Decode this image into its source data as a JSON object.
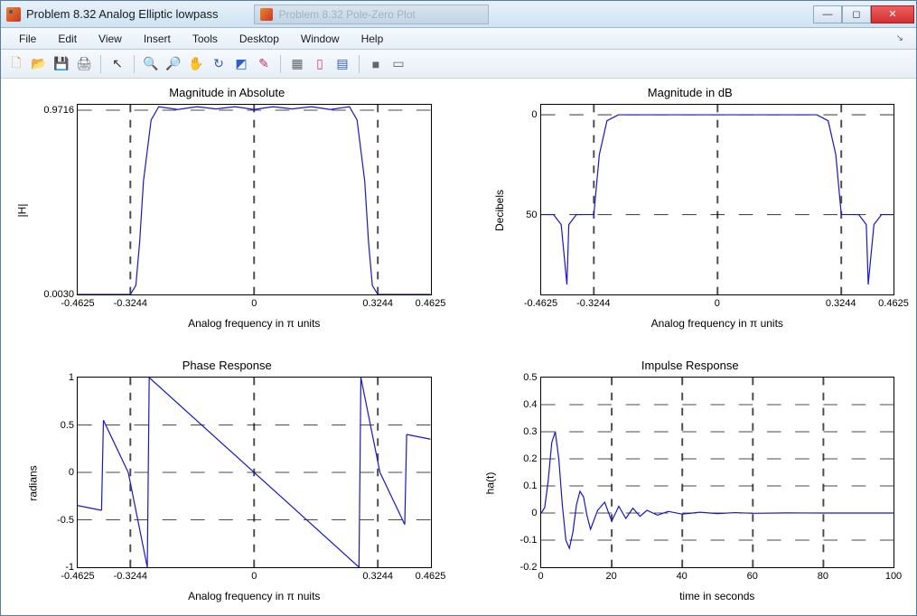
{
  "window": {
    "title": "Problem 8.32 Analog Elliptic lowpass",
    "inactive_tab": "Problem 8.32 Pole-Zero Plot"
  },
  "menu": {
    "items": [
      "File",
      "Edit",
      "View",
      "Insert",
      "Tools",
      "Desktop",
      "Window",
      "Help"
    ]
  },
  "toolbar": {
    "icons": [
      {
        "name": "new-icon",
        "glyph": "🗋",
        "color": "#e0a030"
      },
      {
        "name": "open-icon",
        "glyph": "📂",
        "color": "#e0a030"
      },
      {
        "name": "save-icon",
        "glyph": "💾",
        "color": "#3060c0"
      },
      {
        "name": "print-icon",
        "glyph": "🖨",
        "color": "#666"
      },
      {
        "sep": true
      },
      {
        "name": "pointer-icon",
        "glyph": "↖",
        "color": "#333"
      },
      {
        "sep": true
      },
      {
        "name": "zoom-in-icon",
        "glyph": "🔍",
        "color": "#3060c0"
      },
      {
        "name": "zoom-out-icon",
        "glyph": "🔎",
        "color": "#3060c0"
      },
      {
        "name": "pan-icon",
        "glyph": "✋",
        "color": "#d0a040"
      },
      {
        "name": "rotate-icon",
        "glyph": "↻",
        "color": "#3060c0"
      },
      {
        "name": "datatip-icon",
        "glyph": "◩",
        "color": "#3060c0"
      },
      {
        "name": "brush-icon",
        "glyph": "✎",
        "color": "#c03060"
      },
      {
        "sep": true
      },
      {
        "name": "link-icon",
        "glyph": "▦",
        "color": "#666"
      },
      {
        "name": "colorbar-icon",
        "glyph": "▯",
        "color": "#d04080"
      },
      {
        "name": "legend-icon",
        "glyph": "▤",
        "color": "#3060c0"
      },
      {
        "sep": true
      },
      {
        "name": "stop-icon",
        "glyph": "■",
        "color": "#666"
      },
      {
        "name": "tile-icon",
        "glyph": "▭",
        "color": "#666"
      }
    ]
  },
  "panels": {
    "tl": {
      "title": "Magnitude in Absolute",
      "ylabel": "|H|",
      "xlabel": "Analog frequency in π units",
      "xlim": [
        -0.4625,
        0.4625
      ],
      "ylim": [
        0.003,
        1.0
      ],
      "yticks": [
        {
          "v": 0.003,
          "label": "0.0030"
        },
        {
          "v": 0.9716,
          "label": "0.9716"
        }
      ],
      "xticks": [
        {
          "v": -0.4625,
          "label": "-0.4625"
        },
        {
          "v": -0.3244,
          "label": "-0.3244"
        },
        {
          "v": 0,
          "label": "0"
        },
        {
          "v": 0.3244,
          "label": "0.3244"
        },
        {
          "v": 0.4625,
          "label": "0.4625"
        }
      ],
      "grid_x": [
        -0.3244,
        0,
        0.3244
      ],
      "grid_y": [
        0.9716
      ],
      "series": {
        "x": [
          -0.4625,
          -0.44,
          -0.42,
          -0.4,
          -0.38,
          -0.3244,
          -0.31,
          -0.3,
          -0.29,
          -0.27,
          -0.25,
          -0.2,
          -0.15,
          -0.1,
          -0.05,
          0,
          0.05,
          0.1,
          0.15,
          0.2,
          0.25,
          0.27,
          0.29,
          0.3,
          0.31,
          0.3244,
          0.38,
          0.4,
          0.42,
          0.44,
          0.4625
        ],
        "y": [
          0.003,
          0.003,
          0.003,
          0.003,
          0.003,
          0.003,
          0.05,
          0.28,
          0.6,
          0.92,
          0.99,
          0.975,
          0.99,
          0.978,
          0.99,
          0.975,
          0.99,
          0.978,
          0.99,
          0.975,
          0.99,
          0.92,
          0.6,
          0.28,
          0.05,
          0.003,
          0.003,
          0.003,
          0.003,
          0.003,
          0.003
        ]
      },
      "line_color": "#1818c8"
    },
    "tr": {
      "title": "Magnitude in dB",
      "ylabel": "Decibels",
      "xlabel": "Analog frequency in π units",
      "xlim": [
        -0.4625,
        0.4625
      ],
      "ylim": [
        -90,
        5
      ],
      "yticks": [
        {
          "v": 0,
          "label": "0"
        },
        {
          "v": -50,
          "label": "50"
        }
      ],
      "xticks": [
        {
          "v": -0.4625,
          "label": "-0.4625"
        },
        {
          "v": -0.3244,
          "label": "-0.3244"
        },
        {
          "v": 0,
          "label": "0"
        },
        {
          "v": 0.3244,
          "label": "0.3244"
        },
        {
          "v": 0.4625,
          "label": "0.4625"
        }
      ],
      "grid_x": [
        -0.3244,
        0,
        0.3244
      ],
      "grid_y": [
        0,
        -50
      ],
      "series": {
        "x": [
          -0.4625,
          -0.45,
          -0.43,
          -0.41,
          -0.395,
          -0.39,
          -0.37,
          -0.3244,
          -0.31,
          -0.29,
          -0.26,
          0,
          0.26,
          0.29,
          0.31,
          0.3244,
          0.37,
          0.39,
          0.395,
          0.41,
          0.43,
          0.45,
          0.4625
        ],
        "y": [
          -50,
          -50,
          -50,
          -55,
          -85,
          -55,
          -50,
          -50,
          -20,
          -3,
          0,
          0,
          0,
          -3,
          -20,
          -50,
          -50,
          -55,
          -85,
          -55,
          -50,
          -50,
          -50
        ]
      },
      "line_color": "#1818c8"
    },
    "bl": {
      "title": "Phase Response",
      "ylabel": "radians",
      "xlabel": "Analog frequency in π nuits",
      "xlim": [
        -0.4625,
        0.4625
      ],
      "ylim": [
        -1,
        1
      ],
      "yticks": [
        {
          "v": -1,
          "label": "-1"
        },
        {
          "v": -0.5,
          "label": "-0.5"
        },
        {
          "v": 0,
          "label": "0"
        },
        {
          "v": 0.5,
          "label": "0.5"
        },
        {
          "v": 1,
          "label": "1"
        }
      ],
      "xticks": [
        {
          "v": -0.4625,
          "label": "-0.4625"
        },
        {
          "v": -0.3244,
          "label": "-0.3244"
        },
        {
          "v": 0,
          "label": "0"
        },
        {
          "v": 0.3244,
          "label": "0.3244"
        },
        {
          "v": 0.4625,
          "label": "0.4625"
        }
      ],
      "grid_x": [
        -0.3244,
        0,
        0.3244
      ],
      "grid_y": [
        -0.5,
        0,
        0.5
      ],
      "segments": [
        {
          "x": [
            -0.4625,
            -0.4
          ],
          "y": [
            -0.35,
            -0.4
          ]
        },
        {
          "x": [
            -0.4,
            -0.395
          ],
          "y": [
            -0.4,
            0.55
          ]
        },
        {
          "x": [
            -0.395,
            -0.33
          ],
          "y": [
            0.55,
            0.0
          ]
        },
        {
          "x": [
            -0.33,
            -0.28
          ],
          "y": [
            0.0,
            -1.0
          ]
        },
        {
          "x": [
            -0.28,
            -0.275
          ],
          "y": [
            -1.0,
            1.0
          ]
        },
        {
          "x": [
            -0.275,
            0.275
          ],
          "y": [
            1.0,
            -1.0
          ]
        },
        {
          "x": [
            0.275,
            0.28
          ],
          "y": [
            -1.0,
            1.0
          ]
        },
        {
          "x": [
            0.28,
            0.33
          ],
          "y": [
            1.0,
            0.0
          ]
        },
        {
          "x": [
            0.33,
            0.395
          ],
          "y": [
            0.0,
            -0.55
          ]
        },
        {
          "x": [
            0.395,
            0.4
          ],
          "y": [
            -0.55,
            0.4
          ]
        },
        {
          "x": [
            0.4,
            0.4625
          ],
          "y": [
            0.4,
            0.35
          ]
        }
      ],
      "line_color": "#1818c8"
    },
    "br": {
      "title": "Impulse Response",
      "ylabel": "ha(t)",
      "xlabel": "time in seconds",
      "xlim": [
        0,
        100
      ],
      "ylim": [
        -0.2,
        0.5
      ],
      "yticks": [
        {
          "v": -0.2,
          "label": "-0.2"
        },
        {
          "v": -0.1,
          "label": "-0.1"
        },
        {
          "v": 0,
          "label": "0"
        },
        {
          "v": 0.1,
          "label": "0.1"
        },
        {
          "v": 0.2,
          "label": "0.2"
        },
        {
          "v": 0.3,
          "label": "0.3"
        },
        {
          "v": 0.4,
          "label": "0.4"
        },
        {
          "v": 0.5,
          "label": "0.5"
        }
      ],
      "xticks": [
        {
          "v": 0,
          "label": "0"
        },
        {
          "v": 20,
          "label": "20"
        },
        {
          "v": 40,
          "label": "40"
        },
        {
          "v": 60,
          "label": "60"
        },
        {
          "v": 80,
          "label": "80"
        },
        {
          "v": 100,
          "label": "100"
        }
      ],
      "grid_x": [
        20,
        40,
        60,
        80
      ],
      "grid_y": [
        -0.1,
        0,
        0.1,
        0.2,
        0.3,
        0.4
      ],
      "series": {
        "x": [
          0,
          1,
          2,
          3,
          4,
          5,
          6,
          7,
          8,
          9,
          10,
          11,
          12,
          13,
          14,
          16,
          18,
          20,
          22,
          24,
          26,
          28,
          30,
          33,
          36,
          40,
          45,
          50,
          55,
          60,
          70,
          80,
          90,
          100
        ],
        "y": [
          0,
          0.02,
          0.12,
          0.26,
          0.3,
          0.2,
          0.03,
          -0.1,
          -0.13,
          -0.07,
          0.03,
          0.08,
          0.06,
          -0.01,
          -0.06,
          0.01,
          0.04,
          -0.03,
          0.025,
          -0.02,
          0.018,
          -0.012,
          0.01,
          -0.008,
          0.006,
          -0.004,
          0.003,
          -0.002,
          0.0015,
          -0.001,
          0.0005,
          0,
          0,
          0
        ]
      },
      "line_color": "#1818c8"
    }
  }
}
